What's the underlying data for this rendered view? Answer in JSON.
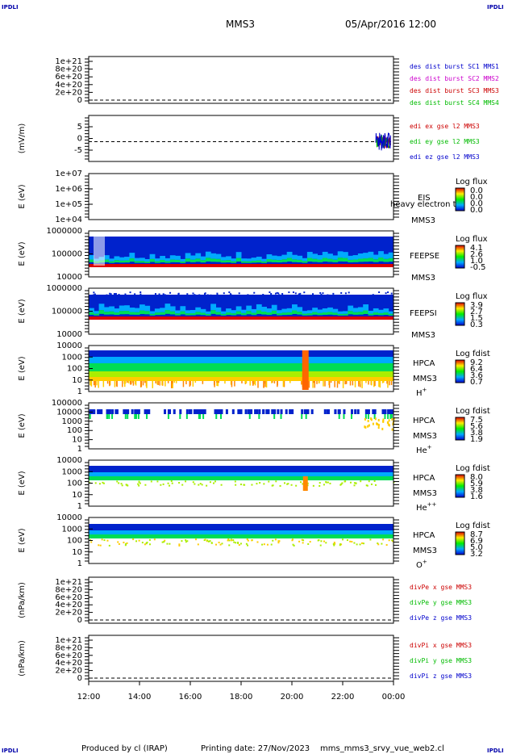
{
  "header": {
    "title": "MMS3",
    "datetime": "05/Apr/2016 12:00",
    "corner_text": "IPDLI"
  },
  "footer": {
    "produced_by": "Produced by cl (IRAP)",
    "printing_date": "Printing date: 27/Nov/2023",
    "script": "mms_mms3_srvy_vue_web2.cl"
  },
  "colors": {
    "frame": "#000000",
    "dashed": "#000000"
  },
  "chart_data": {
    "type": "multi-panel",
    "time_axis": {
      "ticks": [
        "12:00",
        "14:00",
        "16:00",
        "18:00",
        "20:00",
        "22:00",
        "00:00"
      ]
    },
    "panels": [
      {
        "id": "p1",
        "type": "line",
        "ylabel": "",
        "yticks": [
          "1e+21",
          "8e+20",
          "6e+20",
          "4e+20",
          "2e+20",
          "0"
        ],
        "legend": [
          {
            "text": "des dist burst SC1 MMS1",
            "color": "#0000cc"
          },
          {
            "text": "des dist burst SC2 MMS2",
            "color": "#cc00cc"
          },
          {
            "text": "des dist burst SC3 MMS3",
            "color": "#cc0000"
          },
          {
            "text": "des dist burst SC4 MMS4",
            "color": "#00bb00"
          }
        ]
      },
      {
        "id": "p2",
        "type": "line",
        "ylabel": "(mV/m)",
        "yticks": [
          "5",
          "0",
          "-5"
        ],
        "ylim": [
          -8,
          8
        ],
        "series": [
          {
            "name": "edi ex gse l2 MMS3",
            "color": "#cc0000"
          },
          {
            "name": "edi ey gse l2 MMS3",
            "color": "#00bb00"
          },
          {
            "name": "edi ez gse l2 MMS3",
            "color": "#0000cc"
          }
        ],
        "x_range_hours": [
          23.3,
          23.9
        ]
      },
      {
        "id": "p3",
        "type": "heatmap",
        "ylabel": "E (eV)",
        "yticks": [
          "1e+07",
          "1e+06",
          "1e+05",
          "1e+04"
        ],
        "labels": [
          "EIS",
          "MMS3"
        ],
        "overlay": "heavy electron to",
        "colorbar": {
          "title": "Log flux",
          "values": [
            "0.0",
            "0.0",
            "0.0",
            "0.0"
          ]
        }
      },
      {
        "id": "p4",
        "type": "heatmap",
        "ylabel": "E (eV)",
        "yticks": [
          "1000000",
          "100000",
          "10000"
        ],
        "labels": [
          "FEEPSE",
          "MMS3"
        ],
        "colorbar": {
          "title": "Log flux",
          "values": [
            "4.1",
            "2.6",
            "1.0",
            "-0.5"
          ]
        }
      },
      {
        "id": "p5",
        "type": "heatmap",
        "ylabel": "E (eV)",
        "yticks": [
          "1000000",
          "100000",
          "10000"
        ],
        "labels": [
          "FEEPSI",
          "MMS3"
        ],
        "colorbar": {
          "title": "Log flux",
          "values": [
            "3.9",
            "2.7",
            "1.5",
            "0.3"
          ]
        }
      },
      {
        "id": "p6",
        "type": "heatmap",
        "ylabel": "E (eV)",
        "yticks": [
          "10000",
          "1000",
          "100",
          "10",
          "1"
        ],
        "labels": [
          "HPCA",
          "MMS3"
        ],
        "species": "H",
        "charge": "+",
        "colorbar": {
          "title": "Log fdist",
          "values": [
            "9.2",
            "6.4",
            "3.6",
            "0.7"
          ]
        }
      },
      {
        "id": "p7",
        "type": "heatmap",
        "ylabel": "E (eV)",
        "yticks": [
          "100000",
          "10000",
          "1000",
          "100",
          "10",
          "1"
        ],
        "labels": [
          "HPCA",
          "MMS3"
        ],
        "species": "He",
        "charge": "+",
        "colorbar": {
          "title": "Log fdist",
          "values": [
            "7.5",
            "5.6",
            "3.8",
            "1.9"
          ]
        }
      },
      {
        "id": "p8",
        "type": "heatmap",
        "ylabel": "E (eV)",
        "yticks": [
          "10000",
          "1000",
          "100",
          "10",
          "1"
        ],
        "labels": [
          "HPCA",
          "MMS3"
        ],
        "species": "He",
        "charge": "++",
        "colorbar": {
          "title": "Log fdist",
          "values": [
            "8.0",
            "5.9",
            "3.8",
            "1.6"
          ]
        }
      },
      {
        "id": "p9",
        "type": "heatmap",
        "ylabel": "E (eV)",
        "yticks": [
          "10000",
          "1000",
          "100",
          "10",
          "1"
        ],
        "labels": [
          "HPCA",
          "MMS3"
        ],
        "species": "O",
        "charge": "+",
        "colorbar": {
          "title": "Log fdist",
          "values": [
            "8.7",
            "6.9",
            "5.0",
            "3.2"
          ]
        }
      },
      {
        "id": "p10",
        "type": "line",
        "ylabel": "(nPa/km)",
        "yticks": [
          "1e+21",
          "8e+20",
          "6e+20",
          "4e+20",
          "2e+20",
          "0"
        ],
        "legend": [
          {
            "text": "divPe x gse MMS3",
            "color": "#cc0000"
          },
          {
            "text": "divPe y gse MMS3",
            "color": "#00bb00"
          },
          {
            "text": "divPe z gse MMS3",
            "color": "#0000cc"
          }
        ]
      },
      {
        "id": "p11",
        "type": "line",
        "ylabel": "(nPa/km)",
        "yticks": [
          "1e+21",
          "8e+20",
          "6e+20",
          "4e+20",
          "2e+20",
          "0"
        ],
        "legend": [
          {
            "text": "divPi x gse MMS3",
            "color": "#cc0000"
          },
          {
            "text": "divPi y gse MMS3",
            "color": "#00bb00"
          },
          {
            "text": "divPi z gse MMS3",
            "color": "#0000cc"
          }
        ]
      }
    ]
  }
}
